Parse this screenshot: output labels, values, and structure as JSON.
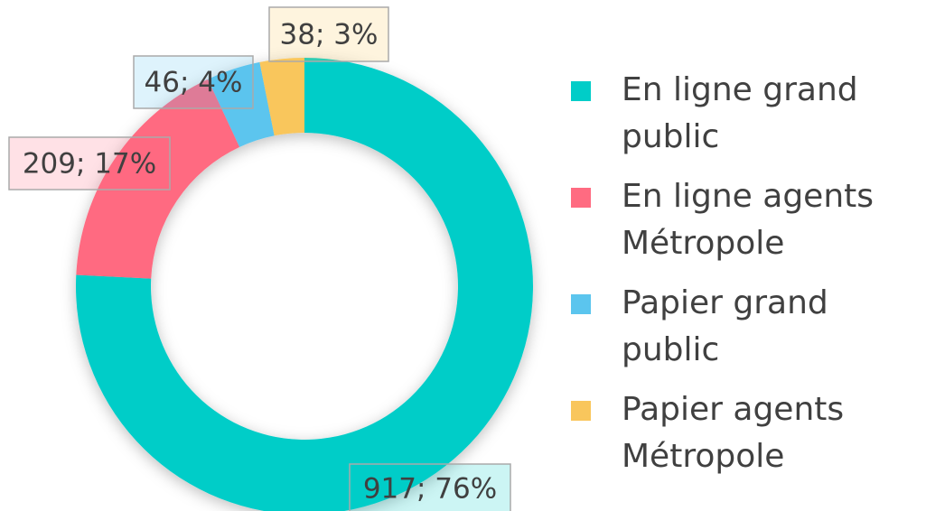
{
  "chart_data": {
    "type": "donut",
    "categories": [
      "En ligne grand public",
      "En ligne agents Métropole",
      "Papier grand public",
      "Papier agents Métropole"
    ],
    "values": [
      917,
      209,
      46,
      38
    ],
    "value_labels": [
      "917; 76%",
      "209; 17%",
      "46; 4%",
      "38; 3%"
    ],
    "colors": [
      "#00cdc8",
      "#ff6b81",
      "#5bc5ee",
      "#f9c65c"
    ],
    "legend": "right"
  }
}
